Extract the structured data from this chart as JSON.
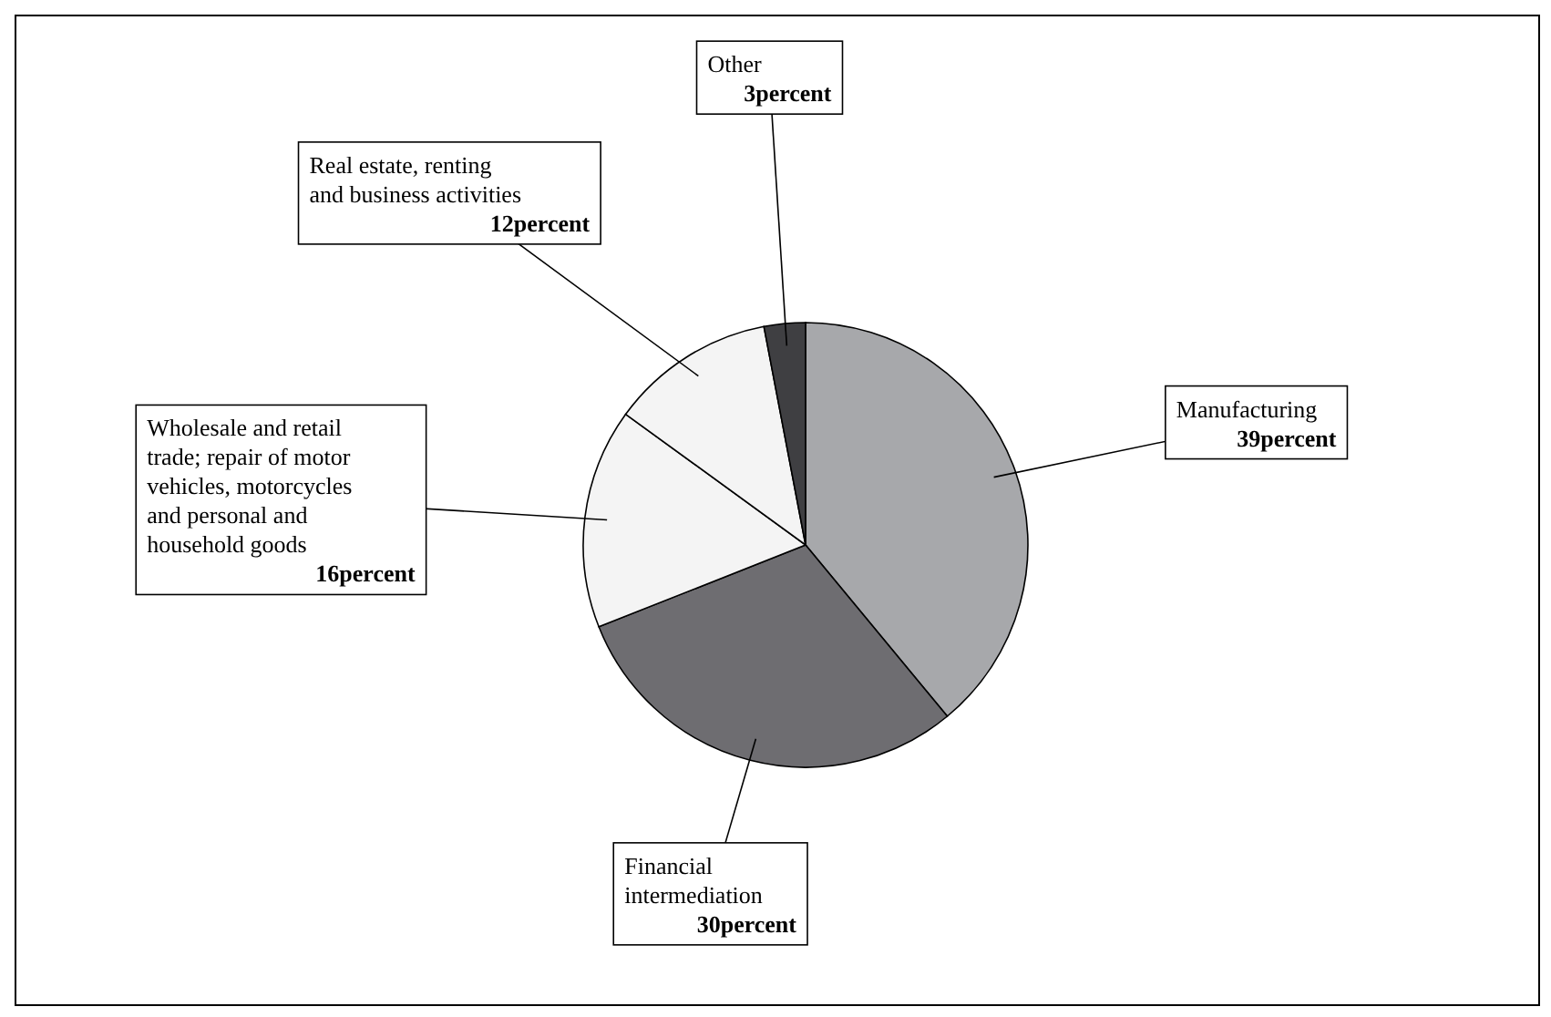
{
  "chart_data": {
    "type": "pie",
    "categories": [
      "Manufacturing",
      "Financial intermediation",
      "Wholesale and retail trade; repair of motor vehicles, motorcycles and personal and household goods",
      "Real estate, renting and business activities",
      "Other"
    ],
    "values": [
      39,
      30,
      16,
      12,
      3
    ],
    "value_labels": [
      "39percent",
      "30percent",
      "16percent",
      "12percent",
      "3percent"
    ],
    "colors": [
      "#a7a8ab",
      "#6e6d71",
      "#f4f4f4",
      "#f4f4f4",
      "#3f3f42"
    ]
  }
}
